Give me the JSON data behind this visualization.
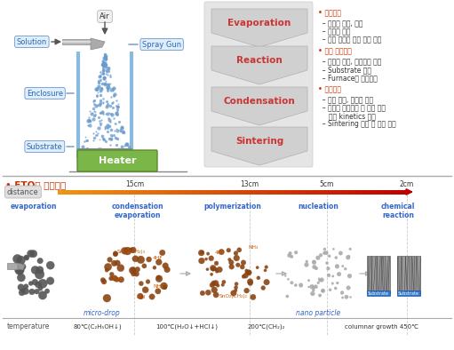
{
  "bg_color": "#ffffff",
  "top_section": {
    "spray_gun_label": "Spray Gun",
    "solution_label": "Solution",
    "enclosure_label": "Enclosure",
    "substrate_label": "Substrate",
    "air_label": "Air",
    "heater_label": "Heater",
    "heater_color": "#7ab648",
    "heater_border": "#5a8a30",
    "spray_dot_color": "#6699cc",
    "process_steps": [
      "Evaporation",
      "Reaction",
      "Condensation",
      "Sintering"
    ],
    "process_text_color": "#cc3333",
    "right_text": [
      {
        "bold": true,
        "text": "• 출발원료"
      },
      {
        "bold": false,
        "text": "  – 원료의 조성, 점도"
      },
      {
        "bold": false,
        "text": "  – 원료의 배합"
      },
      {
        "bold": false,
        "text": "  – 막의 특성에 따른 원료 설계"
      },
      {
        "bold": true,
        "text": "• 장비 설계기술"
      },
      {
        "bold": false,
        "text": "  – 노즘의 형상, 분사압력 조절"
      },
      {
        "bold": false,
        "text": "  – Substrate 설계"
      },
      {
        "bold": false,
        "text": "  – Furnace의 온도구비"
      },
      {
        "bold": true,
        "text": "• 공정기술"
      },
      {
        "bold": false,
        "text": "  – 액적 크기, 분무량 제어"
      },
      {
        "bold": false,
        "text": "  – 액적의 낙하속도 및 반응 속도"
      },
      {
        "bold": false,
        "text": "     간의 kinetics 조절"
      },
      {
        "bold": false,
        "text": "  – Sintering 시간 및 온도 제어"
      }
    ]
  },
  "bottom_section": {
    "title": "• FTO막 형성원리",
    "title_color": "#cc3300",
    "distance_label": "distance",
    "distance_marks": [
      "15cm",
      "13cm",
      "5cm",
      "2cm"
    ],
    "stages": [
      "evaporation",
      "condensation\nevaporation",
      "polymerization",
      "nucleation",
      "chemical\nreaction"
    ],
    "stages_color": "#3366cc",
    "micro_drop_label": "micro-drop",
    "nano_particle_label": "nano particle",
    "sub_labels_color": "#3366cc",
    "temp_label": "temperature",
    "temps": [
      [
        110,
        "80℃(C₂H₅OH↓)"
      ],
      [
        210,
        "100℃(H₂O↓+HCl↓)"
      ],
      [
        300,
        "200℃(CH₂)₂"
      ],
      [
        430,
        "columnar growth 450℃"
      ]
    ]
  }
}
